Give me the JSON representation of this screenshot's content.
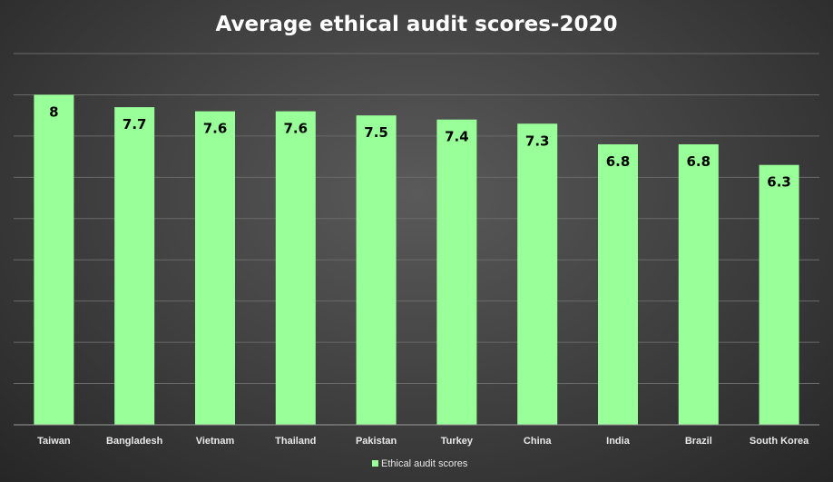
{
  "chart_data": {
    "type": "bar",
    "title": "Average ethical audit scores-2020",
    "categories": [
      "Taiwan",
      "Bangladesh",
      "Vietnam",
      "Thailand",
      "Pakistan",
      "Turkey",
      "China",
      "India",
      "Brazil",
      "South Korea"
    ],
    "series": [
      {
        "name": "Ethical audit scores",
        "values": [
          8,
          7.7,
          7.6,
          7.6,
          7.5,
          7.4,
          7.3,
          6.8,
          6.8,
          6.3
        ],
        "color": "#99ff99"
      }
    ],
    "xlabel": "",
    "ylabel": "",
    "ylim": [
      0,
      9
    ],
    "grid": true,
    "data_labels": true,
    "legend_position": "bottom"
  }
}
